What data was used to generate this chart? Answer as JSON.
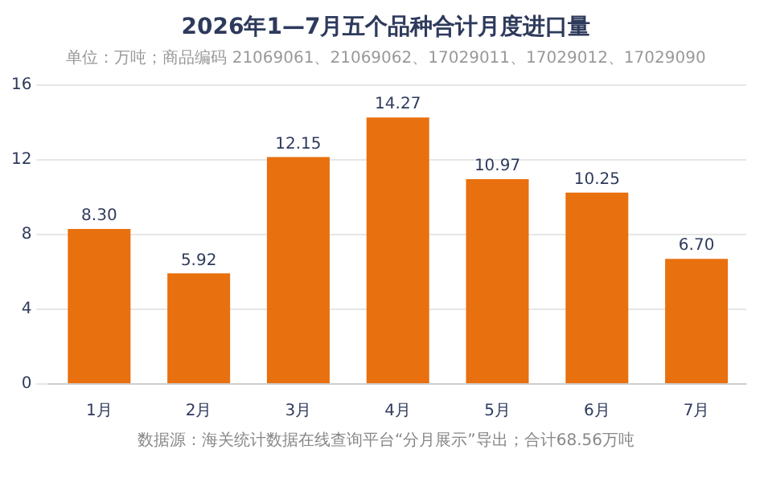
{
  "chart_data": {
    "type": "bar",
    "title": "2026年1—7月五个品种合计月度进口量",
    "subtitle": "单位：万吨；商品编码 21069061、21069062、17029011、17029012、17029090",
    "annotations": [
      "数据源：海关统计数据在线查询平台“分月展示”导出；合计68.56万吨"
    ],
    "categories": [
      "1月",
      "2月",
      "3月",
      "4月",
      "5月",
      "6月",
      "7月"
    ],
    "values": [
      8.3,
      5.92,
      12.15,
      14.27,
      10.97,
      10.25,
      6.7
    ],
    "value_labels": [
      "8.30",
      "5.92",
      "12.15",
      "14.27",
      "10.97",
      "10.25",
      "6.70"
    ],
    "color": "#e8700f",
    "ylim": [
      0,
      16
    ],
    "yticks": [
      0,
      4,
      8,
      12,
      16
    ],
    "grid": "y",
    "legend": false
  }
}
